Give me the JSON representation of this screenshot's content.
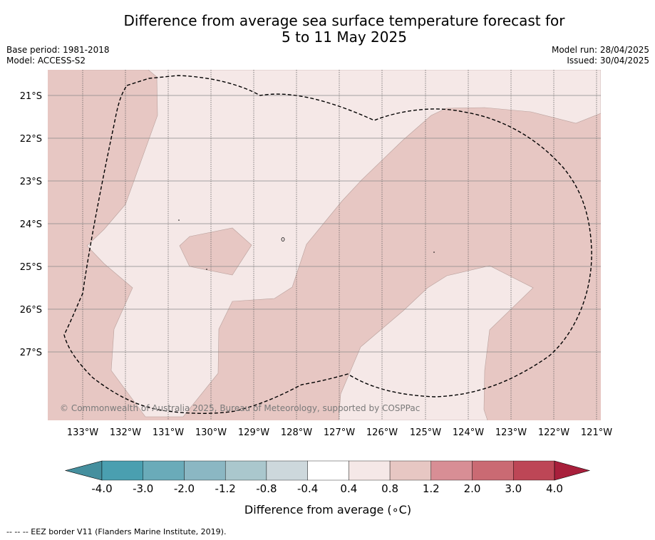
{
  "title_line1": "Difference from average sea surface temperature forecast for",
  "title_line2": "5 to 11 May 2025",
  "base_period": "Base period: 1981-2018",
  "model": "Model: ACCESS-S2",
  "model_run": "Model run: 28/04/2025",
  "issued": "Issued: 30/04/2025",
  "copyright": "© Commonwealth of Australia 2025, Bureau of Meteorology, supported by COSPPac",
  "lon_labels": [
    "133°W",
    "132°W",
    "131°W",
    "130°W",
    "129°W",
    "128°W",
    "127°W",
    "126°W",
    "125°W",
    "124°W",
    "123°W",
    "122°W",
    "121°W"
  ],
  "lat_labels": [
    "21°S",
    "22°S",
    "23°S",
    "24°S",
    "25°S",
    "26°S",
    "27°S"
  ],
  "colorbar": {
    "label": "Difference from average (∘C)",
    "ticks": [
      "-4.0",
      "-3.0",
      "-2.0",
      "-1.2",
      "-0.8",
      "-0.4",
      "0.4",
      "0.8",
      "1.2",
      "2.0",
      "3.0",
      "4.0"
    ],
    "colors": [
      "#458f9e",
      "#4a9fb0",
      "#6aabb9",
      "#8bb7c3",
      "#aac7cd",
      "#cdd8dc",
      "#ffffff",
      "#f5e8e7",
      "#e7c7c3",
      "#d88e95",
      "#ca6a73",
      "#bd4656",
      "#a81f3b"
    ]
  },
  "legend_note": "-- -- -- EEZ border V11 (Flanders Marine Institute, 2019).",
  "colors": {
    "anomaly_0_4_to_0_8": "#f5e8e7",
    "anomaly_0_8_to_1_2": "#e7c7c3",
    "eez_border": "#000000"
  }
}
